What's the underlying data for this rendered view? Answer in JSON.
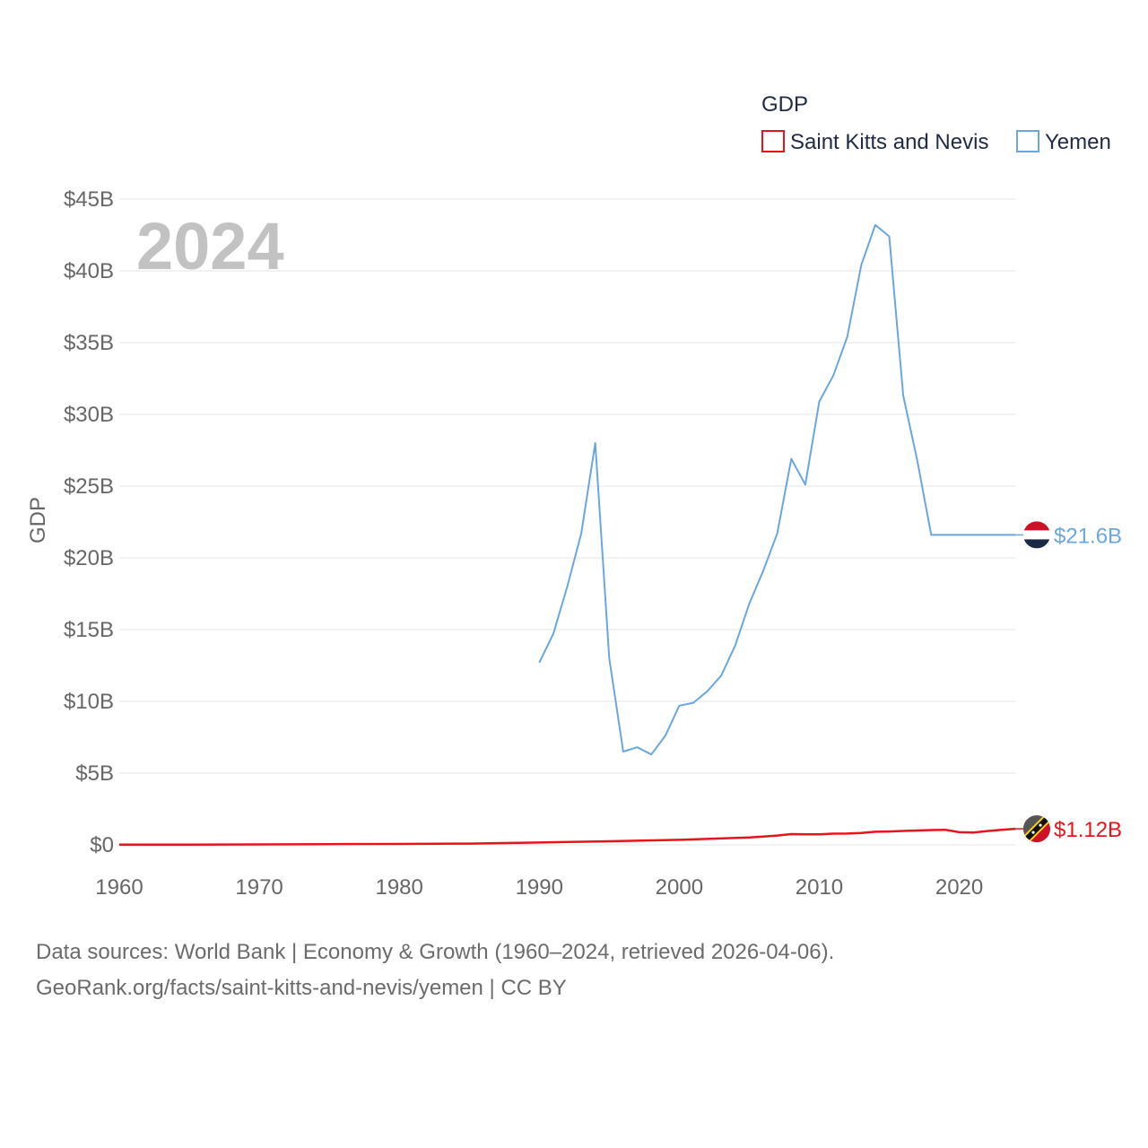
{
  "chart_data": {
    "type": "line",
    "title": "GDP",
    "year_label": "2024",
    "ylabel": "GDP",
    "xlim": [
      1960,
      2024
    ],
    "ylim": [
      0,
      45
    ],
    "x_ticks": [
      1960,
      1970,
      1980,
      1990,
      2000,
      2010,
      2020
    ],
    "x_tick_labels": [
      "1960",
      "1970",
      "1980",
      "1990",
      "2000",
      "2010",
      "2020"
    ],
    "y_ticks": [
      0,
      5,
      10,
      15,
      20,
      25,
      30,
      35,
      40,
      45
    ],
    "y_tick_labels": [
      "$0",
      "$5B",
      "$10B",
      "$15B",
      "$20B",
      "$25B",
      "$30B",
      "$35B",
      "$40B",
      "$45B"
    ],
    "grid": true,
    "legend_position": "top-right",
    "series": [
      {
        "name": "Saint Kitts and Nevis",
        "color": "#e8141c",
        "end_label": "$1.12B",
        "flag_icon": "saint-kitts-and-nevis-flag-icon",
        "x": [
          1960,
          1965,
          1970,
          1975,
          1980,
          1985,
          1990,
          1995,
          2000,
          2005,
          2006,
          2007,
          2008,
          2009,
          2010,
          2011,
          2012,
          2013,
          2014,
          2015,
          2016,
          2017,
          2018,
          2019,
          2020,
          2021,
          2022,
          2023,
          2024
        ],
        "values": [
          0.01,
          0.02,
          0.03,
          0.05,
          0.06,
          0.09,
          0.16,
          0.25,
          0.35,
          0.52,
          0.58,
          0.65,
          0.75,
          0.74,
          0.73,
          0.78,
          0.79,
          0.83,
          0.91,
          0.93,
          0.97,
          1.0,
          1.03,
          1.05,
          0.88,
          0.86,
          0.96,
          1.05,
          1.12
        ]
      },
      {
        "name": "Yemen",
        "color": "#6aa7e0",
        "end_label": "$21.6B",
        "flag_icon": "yemen-flag-icon",
        "x": [
          1990,
          1991,
          1992,
          1993,
          1994,
          1995,
          1996,
          1997,
          1998,
          1999,
          2000,
          2001,
          2002,
          2003,
          2004,
          2005,
          2006,
          2007,
          2008,
          2009,
          2010,
          2011,
          2012,
          2013,
          2014,
          2015,
          2016,
          2017,
          2018,
          2019,
          2020,
          2021,
          2022,
          2023,
          2024
        ],
        "values": [
          12.7,
          14.7,
          18.0,
          21.7,
          28.0,
          13.0,
          6.5,
          6.8,
          6.3,
          7.6,
          9.7,
          9.9,
          10.7,
          11.8,
          13.9,
          16.8,
          19.1,
          21.7,
          26.9,
          25.1,
          30.9,
          32.7,
          35.4,
          40.4,
          43.2,
          42.4,
          31.3,
          26.8,
          21.6,
          21.6,
          21.6,
          21.6,
          21.6,
          21.6,
          21.6
        ]
      }
    ]
  },
  "legend": {
    "title": "GDP",
    "items": [
      "Saint Kitts and Nevis",
      "Yemen"
    ]
  },
  "footer": {
    "line1": "Data sources: World Bank | Economy & Growth (1960–2024, retrieved 2026-04-06).",
    "line2": "GeoRank.org/facts/saint-kitts-and-nevis/yemen | CC BY"
  }
}
